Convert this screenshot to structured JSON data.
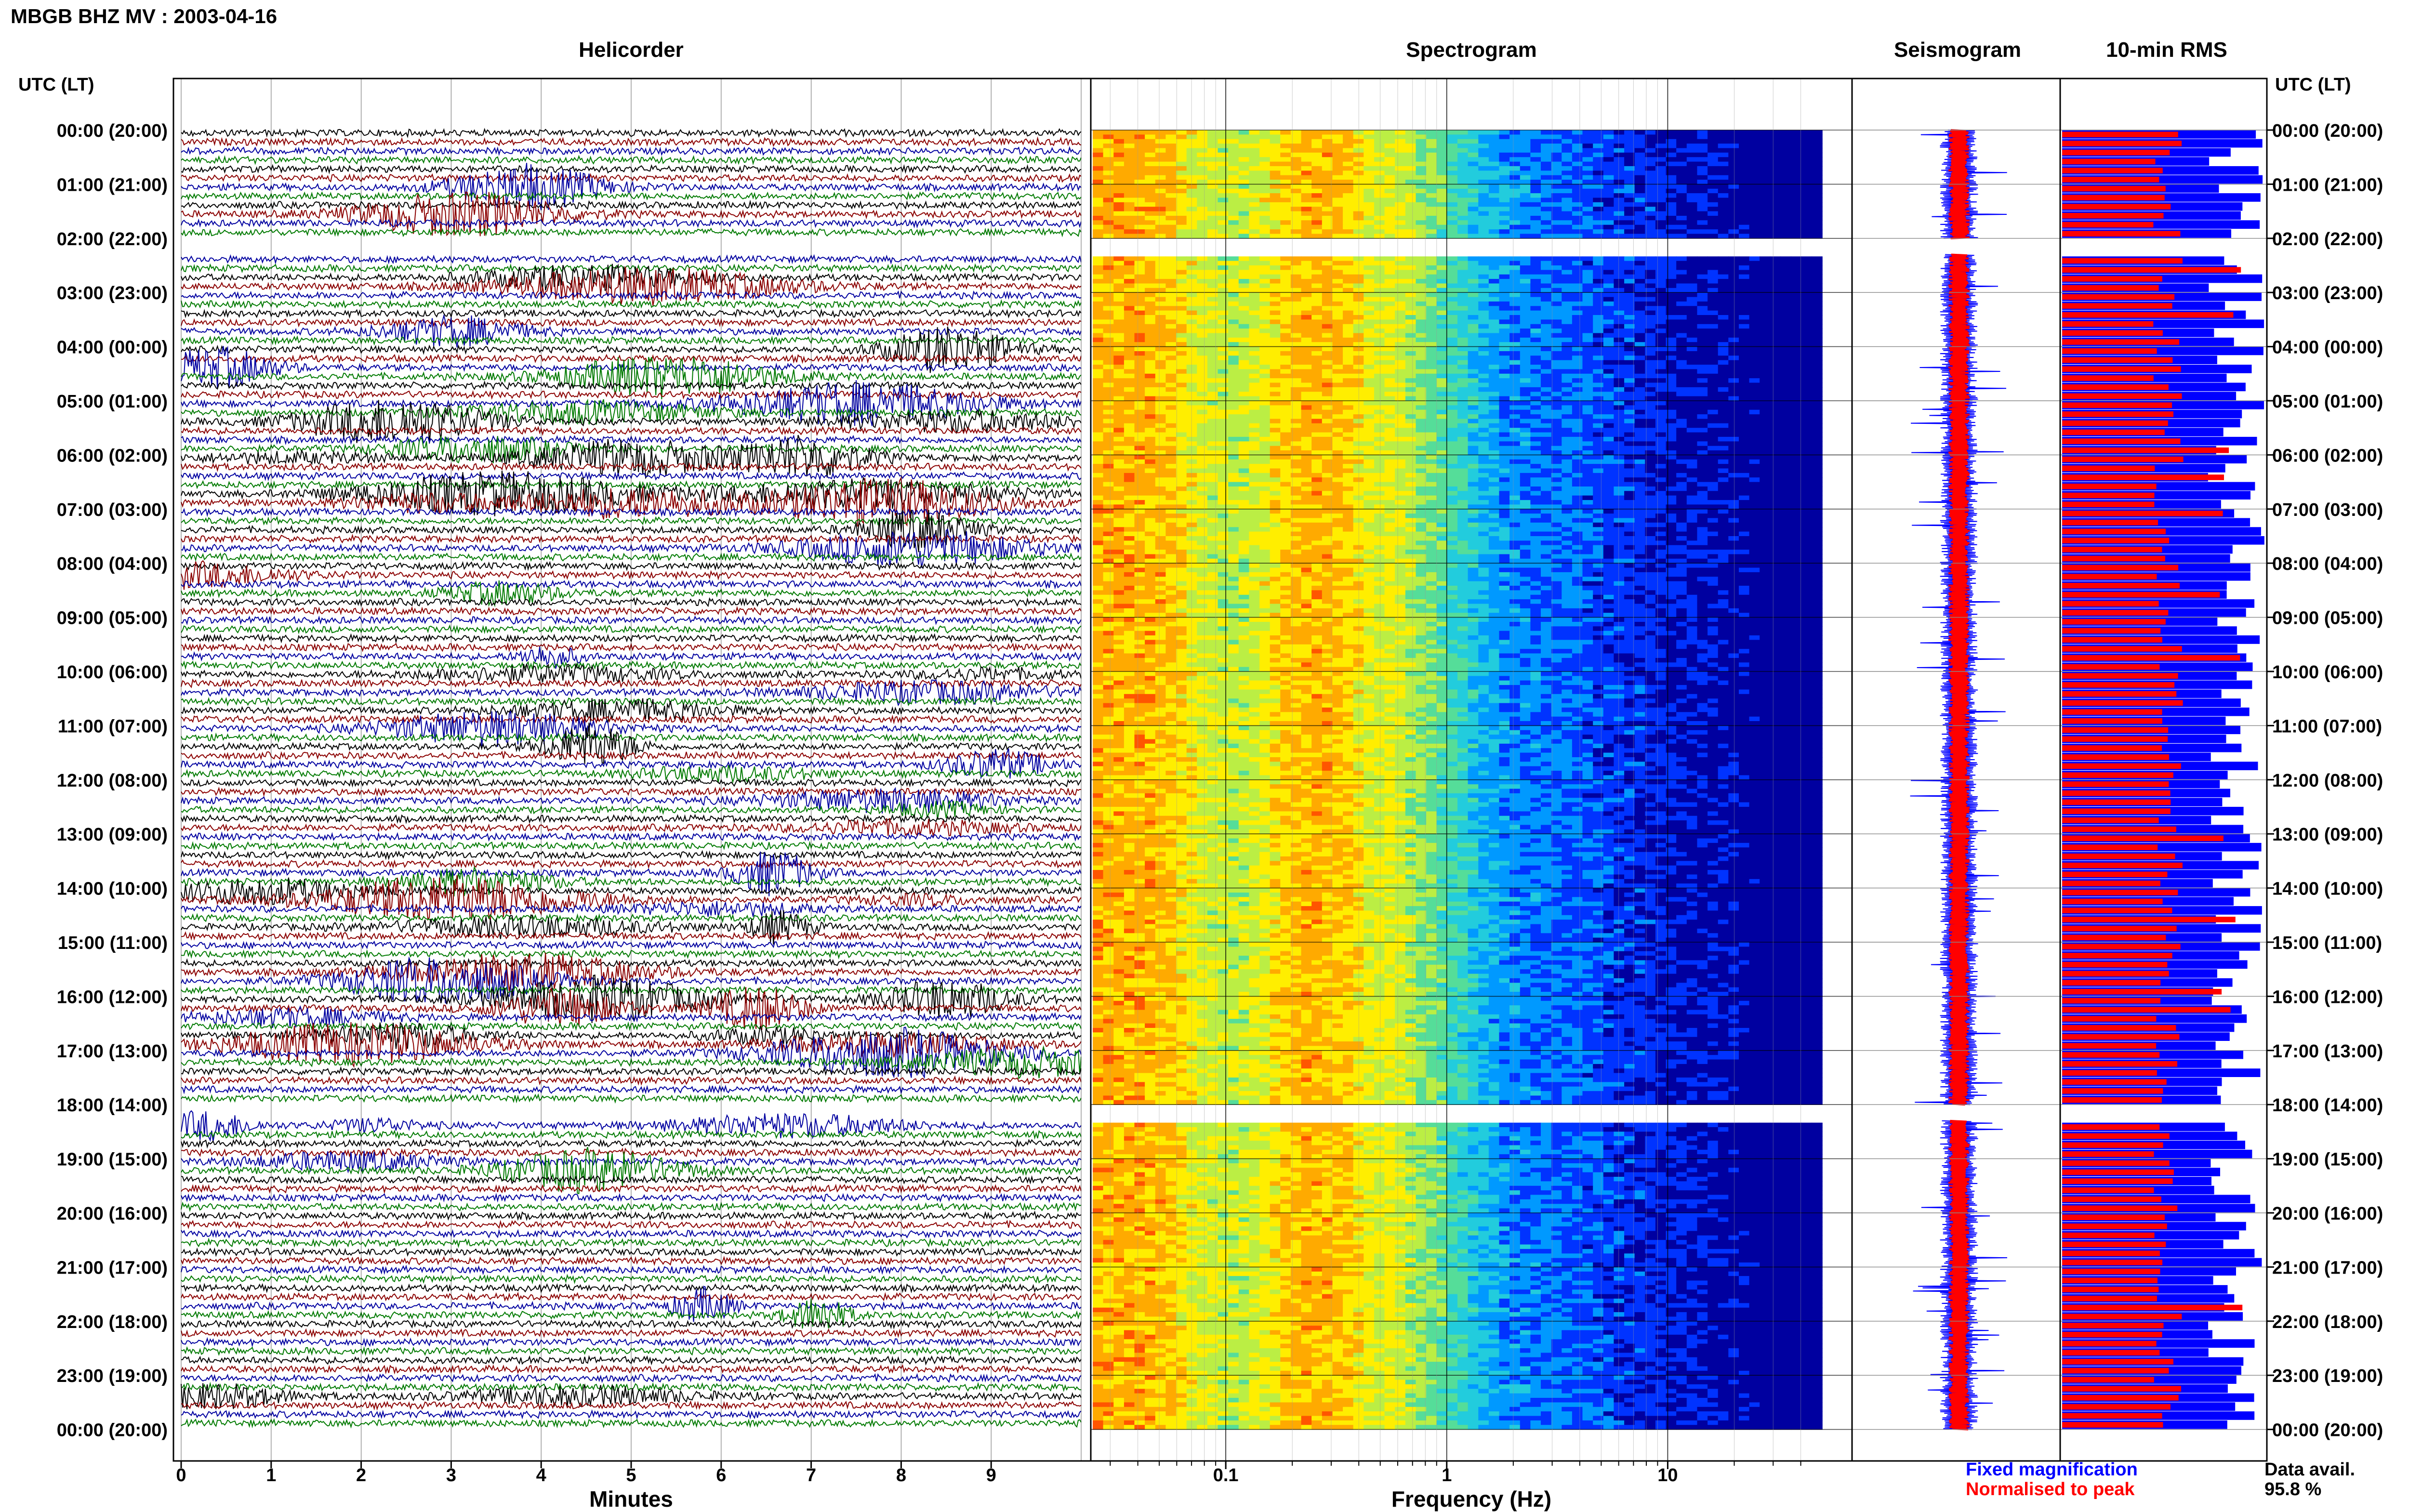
{
  "title": "MBGB BHZ MV : 2003-04-16",
  "time_axis_label": "UTC (LT)",
  "panels": {
    "helicorder": "Helicorder",
    "spectrogram": "Spectrogram",
    "seismogram": "Seismogram",
    "rms": "10-min RMS"
  },
  "legend": {
    "fixed": "Fixed magnification",
    "normalised": "Normalised to peak",
    "fixed_color": "#0000ff",
    "normalised_color": "#ff0000"
  },
  "data_availability": {
    "label": "Data avail.",
    "value": "95.8 %"
  },
  "chart_data": [
    {
      "type": "line",
      "panel": "helicorder",
      "xlabel": "Minutes",
      "x_ticks": [
        "0",
        "1",
        "2",
        "3",
        "4",
        "5",
        "6",
        "7",
        "8",
        "9"
      ],
      "x_range": [
        0,
        10
      ],
      "y_tick_labels": [
        "00:00 (20:00)",
        "01:00 (21:00)",
        "02:00 (22:00)",
        "03:00 (23:00)",
        "04:00 (00:00)",
        "05:00 (01:00)",
        "06:00 (02:00)",
        "07:00 (03:00)",
        "08:00 (04:00)",
        "09:00 (05:00)",
        "10:00 (06:00)",
        "11:00 (07:00)",
        "12:00 (08:00)",
        "13:00 (09:00)",
        "14:00 (10:00)",
        "15:00 (11:00)",
        "16:00 (12:00)",
        "17:00 (13:00)",
        "18:00 (14:00)",
        "19:00 (15:00)",
        "20:00 (16:00)",
        "21:00 (17:00)",
        "22:00 (18:00)",
        "23:00 (19:00)",
        "00:00 (20:00)"
      ],
      "trace_colors": [
        "#000000",
        "#8b0000",
        "#0000a0",
        "#007a00"
      ],
      "data_gaps_hours": [
        [
          2,
          2.3
        ],
        [
          18,
          18.3
        ]
      ]
    },
    {
      "type": "heatmap",
      "panel": "spectrogram",
      "xlabel": "Frequency (Hz)",
      "x_scale": "log",
      "x_range": [
        0.025,
        50
      ],
      "x_ticks": [
        "0.1",
        "1",
        "10"
      ],
      "colormap": [
        "#0000a0",
        "#0033ff",
        "#0099ff",
        "#22ccdd",
        "#55dd99",
        "#bbee44",
        "#ffee00",
        "#ffaa00",
        "#ff5500"
      ],
      "data_gaps_hours": [
        [
          2,
          2.3
        ],
        [
          18,
          18.3
        ]
      ]
    },
    {
      "type": "line",
      "panel": "seismogram",
      "series": [
        {
          "name": "Fixed magnification"
        },
        {
          "name": "Normalised to peak"
        }
      ],
      "data_gaps_hours": [
        [
          2,
          2.3
        ],
        [
          18,
          18.3
        ]
      ]
    },
    {
      "type": "bar",
      "panel": "rms",
      "orientation": "horizontal",
      "bins_per_hour": 6,
      "series": [
        {
          "name": "Fixed magnification"
        },
        {
          "name": "Normalised to peak"
        }
      ],
      "data_gaps_hours": [
        [
          2,
          2.3
        ],
        [
          18,
          18.3
        ]
      ]
    }
  ]
}
